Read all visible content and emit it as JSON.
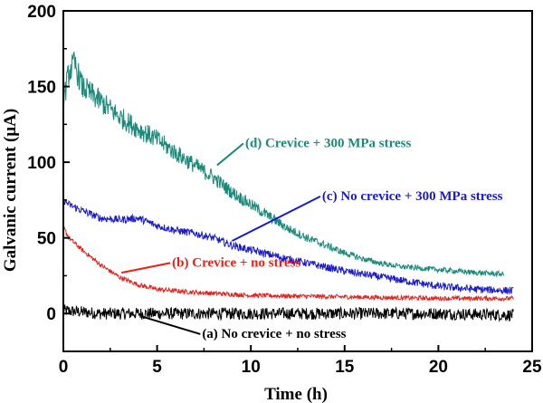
{
  "chart_data": {
    "type": "line",
    "title": "",
    "xlabel": "Time (h)",
    "ylabel": "Galvanic current (μA)",
    "xlim": [
      0,
      25
    ],
    "ylim": [
      -25,
      200
    ],
    "xticks": [
      "0",
      "5",
      "10",
      "15",
      "20",
      "25"
    ],
    "yticks": [
      "0",
      "50",
      "100",
      "150",
      "200"
    ],
    "grid": false,
    "legend": "none",
    "series": [
      {
        "name": "(a) No crevice + no stress",
        "color": "#000000",
        "noise": 4,
        "x": [
          0,
          2,
          5,
          10,
          15,
          20,
          24
        ],
        "y": [
          2,
          0,
          0,
          0,
          0,
          0,
          -1
        ]
      },
      {
        "name": "(b) Crevice + no stress",
        "color": "#e8201a",
        "noise": 1.5,
        "x": [
          0,
          0.3,
          1,
          2,
          3,
          4,
          5,
          7,
          10,
          15,
          20,
          24
        ],
        "y": [
          57,
          50,
          42,
          32,
          24,
          19,
          16,
          14,
          12,
          11,
          10,
          10
        ]
      },
      {
        "name": "(c) No crevice + 300 MPa stress",
        "color": "#1a1ad0",
        "noise": 2.5,
        "x": [
          0,
          0.3,
          1,
          2,
          3,
          4,
          5,
          6,
          7,
          8,
          9,
          10,
          12,
          15,
          18,
          20,
          22,
          24
        ],
        "y": [
          75,
          72,
          68,
          63,
          62,
          63,
          58,
          55,
          53,
          50,
          45,
          42,
          36,
          28,
          22,
          18,
          16,
          15
        ]
      },
      {
        "name": "(d) Crevice + 300 MPa stress",
        "color": "#1a8a7a",
        "noise": 5,
        "x": [
          0,
          0.3,
          0.6,
          1,
          2,
          3,
          4,
          5,
          6,
          7,
          8,
          9,
          10,
          11,
          12,
          13,
          14,
          15,
          16,
          17,
          18,
          19,
          20,
          21,
          22,
          23.5
        ],
        "y": [
          140,
          160,
          165,
          150,
          140,
          130,
          122,
          115,
          106,
          98,
          90,
          80,
          72,
          64,
          56,
          50,
          45,
          40,
          36,
          33,
          31,
          30,
          29,
          28,
          27,
          26
        ]
      }
    ],
    "annotations": [
      {
        "text": "(d) Crevice + 300 MPa stress",
        "color": "#1a8a7a",
        "x": 9.7,
        "y": 110,
        "arrow_to": [
          8.2,
          98
        ]
      },
      {
        "text": "(c) No crevice + 300 MPa stress",
        "color": "#1a1ad0",
        "x": 13.8,
        "y": 75,
        "arrow_to": [
          9,
          48
        ]
      },
      {
        "text": "(b) Crevice + no stress",
        "color": "#e8201a",
        "x": 5.8,
        "y": 31,
        "arrow_to": [
          3.1,
          27
        ]
      },
      {
        "text": "(a) No crevice + no stress",
        "color": "#000000",
        "x": 7.4,
        "y": -16,
        "arrow_to": [
          4.2,
          -2
        ]
      }
    ]
  }
}
